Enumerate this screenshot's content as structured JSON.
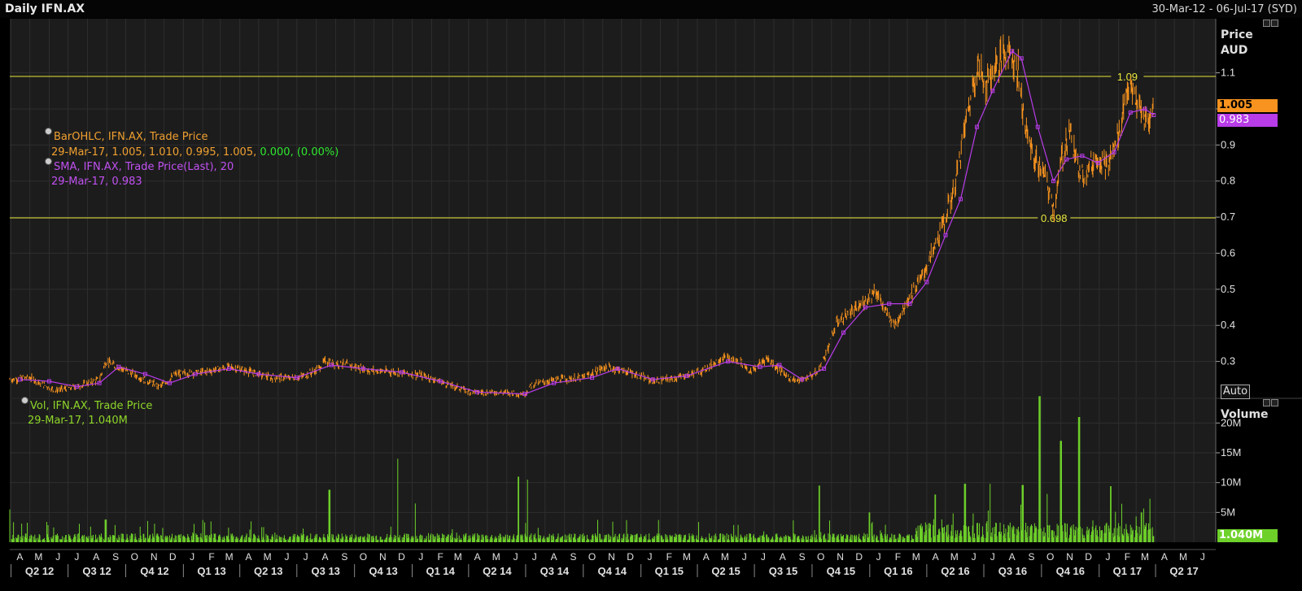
{
  "header": {
    "title": "Daily IFN.AX",
    "date_range": "30-Mar-12 - 06-Jul-17 (SYD)"
  },
  "legends": {
    "ohlc_title": "BarOHLC, IFN.AX, Trade Price",
    "ohlc_values": "29-Mar-17, 1.005, 1.010, 0.995, 1.005,",
    "ohlc_change": "0.000, (0.00%)",
    "sma_title": "SMA, IFN.AX, Trade Price(Last),  20",
    "sma_values": "29-Mar-17, 0.983",
    "vol_title": "Vol, IFN.AX, Trade Price",
    "vol_values": "29-Mar-17, 1.040M"
  },
  "price_axis": {
    "unit_line1": "Price",
    "unit_line2": "AUD",
    "auto_label": "Auto"
  },
  "volume_axis": {
    "unit": "Volume"
  },
  "tags": {
    "close": "1.005",
    "sma": "0.983",
    "volume": "1.040M"
  },
  "colors": {
    "background": "#000000",
    "plot_bg": "#1c1c1c",
    "price_bars": "#f7931e",
    "sma_line": "#b83ce8",
    "volume_bars": "#6ed12a",
    "reference_lines": "#e8e83c",
    "grid": "#2e2e2e"
  },
  "chart_data": [
    {
      "type": "line",
      "title": "Daily IFN.AX",
      "series_kind": "ohlc-bars",
      "ylabel": "Price AUD",
      "ylim": [
        0.2,
        1.25
      ],
      "y_ticks": [
        0.3,
        0.4,
        0.5,
        0.6,
        0.7,
        0.8,
        0.9,
        1.0,
        1.1
      ],
      "y_tick_labels": [
        "0.3",
        "0.4",
        "0.5",
        "0.6",
        "0.7",
        "0.8",
        "0.9",
        "",
        "1.1"
      ],
      "x_start": "2012-03-30",
      "x_end": "2017-07-06",
      "reference_lines": [
        {
          "value": 1.09,
          "label": "1.09",
          "date": "2017-02-15"
        },
        {
          "value": 0.698,
          "label": "0.698",
          "date": "2016-10-21"
        }
      ],
      "series": [
        {
          "name": "BarOHLC, IFN.AX, Trade Price",
          "points": [
            [
              "2012-03-30",
              0.25
            ],
            [
              "2012-05-01",
              0.255
            ],
            [
              "2012-06-10",
              0.22
            ],
            [
              "2012-07-15",
              0.23
            ],
            [
              "2012-08-20",
              0.25
            ],
            [
              "2012-08-30",
              0.3
            ],
            [
              "2012-10-01",
              0.275
            ],
            [
              "2012-11-05",
              0.245
            ],
            [
              "2012-11-25",
              0.23
            ],
            [
              "2012-12-20",
              0.265
            ],
            [
              "2013-02-01",
              0.27
            ],
            [
              "2013-03-15",
              0.285
            ],
            [
              "2013-04-10",
              0.275
            ],
            [
              "2013-05-20",
              0.255
            ],
            [
              "2013-07-05",
              0.255
            ],
            [
              "2013-08-01",
              0.275
            ],
            [
              "2013-08-15",
              0.3
            ],
            [
              "2013-09-20",
              0.29
            ],
            [
              "2013-10-25",
              0.275
            ],
            [
              "2013-12-10",
              0.27
            ],
            [
              "2014-01-20",
              0.26
            ],
            [
              "2014-03-01",
              0.235
            ],
            [
              "2014-04-05",
              0.215
            ],
            [
              "2014-05-20",
              0.215
            ],
            [
              "2014-06-30",
              0.21
            ],
            [
              "2014-07-10",
              0.235
            ],
            [
              "2014-08-20",
              0.25
            ],
            [
              "2014-10-01",
              0.255
            ],
            [
              "2014-11-05",
              0.285
            ],
            [
              "2014-12-15",
              0.27
            ],
            [
              "2015-01-20",
              0.245
            ],
            [
              "2015-03-01",
              0.255
            ],
            [
              "2015-04-10",
              0.275
            ],
            [
              "2015-05-10",
              0.31
            ],
            [
              "2015-06-10",
              0.3
            ],
            [
              "2015-06-25",
              0.27
            ],
            [
              "2015-07-20",
              0.31
            ],
            [
              "2015-08-25",
              0.255
            ],
            [
              "2015-09-10",
              0.245
            ],
            [
              "2015-10-10",
              0.27
            ],
            [
              "2015-10-25",
              0.33
            ],
            [
              "2015-11-10",
              0.41
            ],
            [
              "2015-12-15",
              0.45
            ],
            [
              "2016-01-10",
              0.5
            ],
            [
              "2016-01-25",
              0.44
            ],
            [
              "2016-02-10",
              0.4
            ],
            [
              "2016-03-01",
              0.47
            ],
            [
              "2016-03-20",
              0.52
            ],
            [
              "2016-04-10",
              0.6
            ],
            [
              "2016-05-01",
              0.7
            ],
            [
              "2016-05-15",
              0.78
            ],
            [
              "2016-06-01",
              0.95
            ],
            [
              "2016-06-20",
              1.12
            ],
            [
              "2016-07-05",
              1.07
            ],
            [
              "2016-07-20",
              1.12
            ],
            [
              "2016-08-10",
              1.17
            ],
            [
              "2016-08-25",
              1.1
            ],
            [
              "2016-09-05",
              0.95
            ],
            [
              "2016-09-20",
              0.86
            ],
            [
              "2016-10-05",
              0.82
            ],
            [
              "2016-10-21",
              0.72
            ],
            [
              "2016-11-01",
              0.85
            ],
            [
              "2016-11-15",
              0.95
            ],
            [
              "2016-11-25",
              0.85
            ],
            [
              "2016-12-10",
              0.82
            ],
            [
              "2016-12-30",
              0.87
            ],
            [
              "2017-01-15",
              0.84
            ],
            [
              "2017-02-01",
              0.93
            ],
            [
              "2017-02-15",
              1.06
            ],
            [
              "2017-02-28",
              1.03
            ],
            [
              "2017-03-10",
              0.98
            ],
            [
              "2017-03-20",
              0.96
            ],
            [
              "2017-03-29",
              1.005
            ]
          ]
        },
        {
          "name": "SMA, IFN.AX, Trade Price(Last),  20",
          "points": [
            [
              "2012-04-15",
              0.25
            ],
            [
              "2012-06-01",
              0.245
            ],
            [
              "2012-07-15",
              0.23
            ],
            [
              "2012-08-20",
              0.24
            ],
            [
              "2012-09-20",
              0.285
            ],
            [
              "2012-11-01",
              0.265
            ],
            [
              "2012-12-10",
              0.24
            ],
            [
              "2013-01-20",
              0.265
            ],
            [
              "2013-03-15",
              0.28
            ],
            [
              "2013-05-01",
              0.265
            ],
            [
              "2013-07-01",
              0.255
            ],
            [
              "2013-08-25",
              0.29
            ],
            [
              "2013-10-15",
              0.28
            ],
            [
              "2013-12-15",
              0.27
            ],
            [
              "2014-02-15",
              0.245
            ],
            [
              "2014-04-15",
              0.215
            ],
            [
              "2014-06-30",
              0.21
            ],
            [
              "2014-08-15",
              0.24
            ],
            [
              "2014-10-15",
              0.255
            ],
            [
              "2014-11-25",
              0.28
            ],
            [
              "2015-01-20",
              0.25
            ],
            [
              "2015-03-15",
              0.26
            ],
            [
              "2015-05-20",
              0.3
            ],
            [
              "2015-07-10",
              0.285
            ],
            [
              "2015-08-10",
              0.29
            ],
            [
              "2015-09-15",
              0.25
            ],
            [
              "2015-10-20",
              0.28
            ],
            [
              "2015-11-20",
              0.38
            ],
            [
              "2015-12-25",
              0.45
            ],
            [
              "2016-02-01",
              0.46
            ],
            [
              "2016-03-05",
              0.46
            ],
            [
              "2016-04-01",
              0.52
            ],
            [
              "2016-05-01",
              0.65
            ],
            [
              "2016-05-25",
              0.75
            ],
            [
              "2016-06-20",
              0.95
            ],
            [
              "2016-07-15",
              1.05
            ],
            [
              "2016-08-15",
              1.16
            ],
            [
              "2016-08-30",
              1.14
            ],
            [
              "2016-09-25",
              0.95
            ],
            [
              "2016-10-20",
              0.8
            ],
            [
              "2016-11-10",
              0.86
            ],
            [
              "2016-12-05",
              0.87
            ],
            [
              "2016-12-30",
              0.85
            ],
            [
              "2017-01-25",
              0.88
            ],
            [
              "2017-02-20",
              0.99
            ],
            [
              "2017-03-15",
              1.0
            ],
            [
              "2017-03-29",
              0.983
            ]
          ]
        }
      ]
    },
    {
      "type": "bar",
      "title": "Vol, IFN.AX, Trade Price",
      "ylabel": "Volume",
      "ylim": [
        0,
        24000000
      ],
      "y_ticks": [
        5000000,
        10000000,
        15000000,
        20000000
      ],
      "y_tick_labels": [
        "5M",
        "10M",
        "15M",
        "20M"
      ],
      "baseline_volume": 1000000,
      "notable_spikes": [
        [
          "2012-03-31",
          5500000
        ],
        [
          "2012-08-30",
          3800000
        ],
        [
          "2013-04-20",
          3500000
        ],
        [
          "2013-08-22",
          8800000
        ],
        [
          "2013-12-08",
          14000000
        ],
        [
          "2014-01-05",
          6500000
        ],
        [
          "2014-06-20",
          11000000
        ],
        [
          "2014-07-05",
          10500000
        ],
        [
          "2015-10-12",
          9500000
        ],
        [
          "2016-01-01",
          5000000
        ],
        [
          "2016-04-15",
          8000000
        ],
        [
          "2016-06-01",
          9800000
        ],
        [
          "2016-07-10",
          9800000
        ],
        [
          "2016-09-01",
          9600000
        ],
        [
          "2016-09-28",
          24500000
        ],
        [
          "2016-11-01",
          17000000
        ],
        [
          "2016-11-30",
          21000000
        ],
        [
          "2017-01-20",
          9400000
        ],
        [
          "2017-03-10",
          5000000
        ],
        [
          "2017-03-29",
          1040000
        ]
      ]
    }
  ],
  "x_axis": {
    "months": [
      "A",
      "M",
      "J",
      "J",
      "A",
      "S",
      "O",
      "N",
      "D",
      "J",
      "F",
      "M",
      "A",
      "M",
      "J",
      "J",
      "A",
      "S",
      "O",
      "N",
      "D",
      "J",
      "F",
      "M",
      "A",
      "M",
      "J",
      "J",
      "A",
      "S",
      "O",
      "N",
      "D",
      "J",
      "F",
      "M",
      "A",
      "M",
      "J",
      "J",
      "A",
      "S",
      "O",
      "N",
      "D",
      "J",
      "F",
      "M",
      "A",
      "M",
      "J",
      "J",
      "A",
      "S",
      "O",
      "N",
      "D",
      "J",
      "F",
      "M",
      "A",
      "M",
      "J"
    ],
    "quarters": [
      "Q2 12",
      "Q3 12",
      "Q4 12",
      "Q1 13",
      "Q2 13",
      "Q3 13",
      "Q4 13",
      "Q1 14",
      "Q2 14",
      "Q3 14",
      "Q4 14",
      "Q1 15",
      "Q2 15",
      "Q3 15",
      "Q4 15",
      "Q1 16",
      "Q2 16",
      "Q3 16",
      "Q4 16",
      "Q1 17",
      "Q2 17"
    ]
  }
}
